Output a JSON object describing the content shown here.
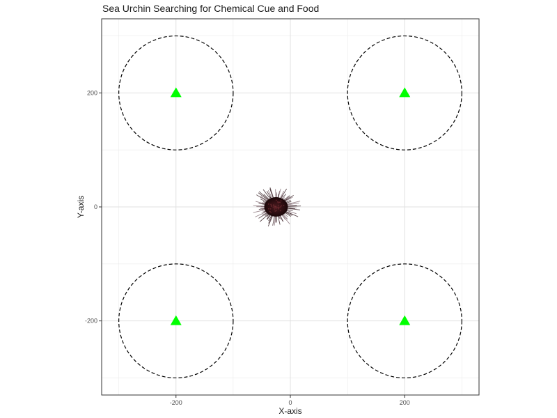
{
  "chart_data": {
    "type": "scatter",
    "title": "Sea Urchin Searching for Chemical Cue and Food",
    "xlabel": "X-axis",
    "ylabel": "Y-axis",
    "xlim": [
      -330,
      330
    ],
    "ylim": [
      -330,
      330
    ],
    "x_ticks": [
      -200,
      0,
      200
    ],
    "y_ticks": [
      -200,
      0,
      200
    ],
    "x_tick_labels": [
      "-200",
      "0",
      "200"
    ],
    "y_tick_labels": [
      "-200",
      "0",
      "200"
    ],
    "grid": true,
    "theme": "bw",
    "series": [
      {
        "kind": "food-target",
        "marker": "triangle",
        "color": "#00ff00",
        "points": [
          {
            "x": -200,
            "y": 200
          },
          {
            "x": 200,
            "y": 200
          },
          {
            "x": -200,
            "y": -200
          },
          {
            "x": 200,
            "y": -200
          }
        ]
      },
      {
        "kind": "chemical-cue-radius",
        "shape": "circle",
        "line_style": "dashed",
        "color": "#000000",
        "circles": [
          {
            "cx": -200,
            "cy": 200,
            "r": 100
          },
          {
            "cx": 200,
            "cy": 200,
            "r": 100
          },
          {
            "cx": -200,
            "cy": -200,
            "r": 100
          },
          {
            "cx": 200,
            "cy": -200,
            "r": 100
          }
        ]
      },
      {
        "kind": "sea-urchin",
        "marker": "urchin-image",
        "color": "#3a1418",
        "points": [
          {
            "x": -25,
            "y": 0
          }
        ]
      }
    ]
  }
}
